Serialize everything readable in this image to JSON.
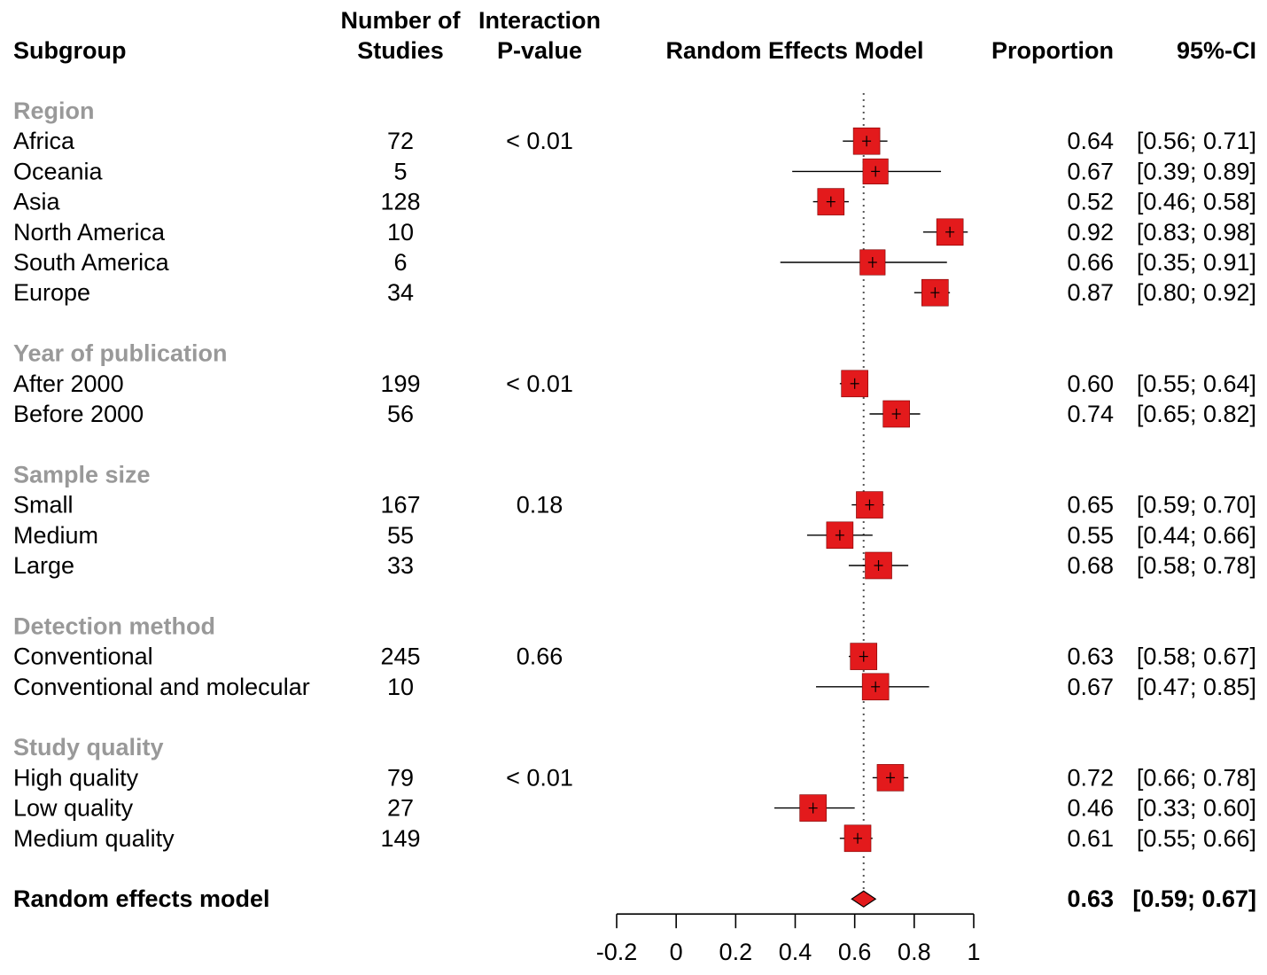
{
  "headers": {
    "subgroup": "Subgroup",
    "studies_line1": "Number of",
    "studies_line2": "Studies",
    "pvalue_line1": "Interaction",
    "pvalue_line2": "P-value",
    "plot": "Random Effects Model",
    "proportion": "Proportion",
    "ci": "95%-CI"
  },
  "colors": {
    "box": "#e31a1c",
    "group_label": "#999999",
    "reference_line": "#555555"
  },
  "chart_data": {
    "type": "forest",
    "title": "Random Effects Model",
    "xlim": [
      -0.2,
      1
    ],
    "ticks": [
      -0.2,
      0,
      0.2,
      0.4,
      0.6,
      0.8,
      1
    ],
    "tick_labels": [
      "-0.2",
      "0",
      "0.2",
      "0.4",
      "0.6",
      "0.8",
      "1"
    ],
    "reference_line": 0.63,
    "groups": [
      {
        "name": "Region",
        "pvalue": "< 0.01",
        "rows": [
          {
            "label": "Africa",
            "n": "72",
            "est": 0.64,
            "lo": 0.56,
            "hi": 0.71,
            "size": 1.0,
            "prop": "0.64",
            "ci": "[0.56; 0.71]"
          },
          {
            "label": "Oceania",
            "n": "5",
            "est": 0.67,
            "lo": 0.39,
            "hi": 0.89,
            "size": 0.95,
            "prop": "0.67",
            "ci": "[0.39; 0.89]"
          },
          {
            "label": "Asia",
            "n": "128",
            "est": 0.52,
            "lo": 0.46,
            "hi": 0.58,
            "size": 1.0,
            "prop": "0.52",
            "ci": "[0.46; 0.58]"
          },
          {
            "label": "North America",
            "n": "10",
            "est": 0.92,
            "lo": 0.83,
            "hi": 0.98,
            "size": 1.0,
            "prop": "0.92",
            "ci": "[0.83; 0.98]"
          },
          {
            "label": "South America",
            "n": "6",
            "est": 0.66,
            "lo": 0.35,
            "hi": 0.91,
            "size": 0.95,
            "prop": "0.66",
            "ci": "[0.35; 0.91]"
          },
          {
            "label": "Europe",
            "n": "34",
            "est": 0.87,
            "lo": 0.8,
            "hi": 0.92,
            "size": 1.0,
            "prop": "0.87",
            "ci": "[0.80; 0.92]"
          }
        ]
      },
      {
        "name": "Year of publication",
        "pvalue": "< 0.01",
        "rows": [
          {
            "label": "After 2000",
            "n": "199",
            "est": 0.6,
            "lo": 0.55,
            "hi": 0.64,
            "size": 1.0,
            "prop": "0.60",
            "ci": "[0.55; 0.64]"
          },
          {
            "label": "Before 2000",
            "n": "56",
            "est": 0.74,
            "lo": 0.65,
            "hi": 0.82,
            "size": 1.0,
            "prop": "0.74",
            "ci": "[0.65; 0.82]"
          }
        ]
      },
      {
        "name": "Sample size",
        "pvalue": "0.18",
        "rows": [
          {
            "label": "Small",
            "n": "167",
            "est": 0.65,
            "lo": 0.59,
            "hi": 0.7,
            "size": 1.0,
            "prop": "0.65",
            "ci": "[0.59; 0.70]"
          },
          {
            "label": "Medium",
            "n": "55",
            "est": 0.55,
            "lo": 0.44,
            "hi": 0.66,
            "size": 1.0,
            "prop": "0.55",
            "ci": "[0.44; 0.66]"
          },
          {
            "label": "Large",
            "n": "33",
            "est": 0.68,
            "lo": 0.58,
            "hi": 0.78,
            "size": 1.0,
            "prop": "0.68",
            "ci": "[0.58; 0.78]"
          }
        ]
      },
      {
        "name": "Detection method",
        "pvalue": "0.66",
        "rows": [
          {
            "label": "Conventional",
            "n": "245",
            "est": 0.63,
            "lo": 0.58,
            "hi": 0.67,
            "size": 1.0,
            "prop": "0.63",
            "ci": "[0.58; 0.67]"
          },
          {
            "label": "Conventional and molecular",
            "n": "10",
            "est": 0.67,
            "lo": 0.47,
            "hi": 0.85,
            "size": 1.0,
            "prop": "0.67",
            "ci": "[0.47; 0.85]"
          }
        ]
      },
      {
        "name": "Study quality",
        "pvalue": "< 0.01",
        "rows": [
          {
            "label": "High quality",
            "n": "79",
            "est": 0.72,
            "lo": 0.66,
            "hi": 0.78,
            "size": 1.0,
            "prop": "0.72",
            "ci": "[0.66; 0.78]"
          },
          {
            "label": "Low quality",
            "n": "27",
            "est": 0.46,
            "lo": 0.33,
            "hi": 0.6,
            "size": 1.0,
            "prop": "0.46",
            "ci": "[0.33; 0.60]"
          },
          {
            "label": "Medium quality",
            "n": "149",
            "est": 0.61,
            "lo": 0.55,
            "hi": 0.66,
            "size": 1.0,
            "prop": "0.61",
            "ci": "[0.55; 0.66]"
          }
        ]
      }
    ],
    "overall": {
      "label": "Random effects model",
      "est": 0.63,
      "lo": 0.59,
      "hi": 0.67,
      "prop": "0.63",
      "ci": "[0.59; 0.67]"
    }
  }
}
